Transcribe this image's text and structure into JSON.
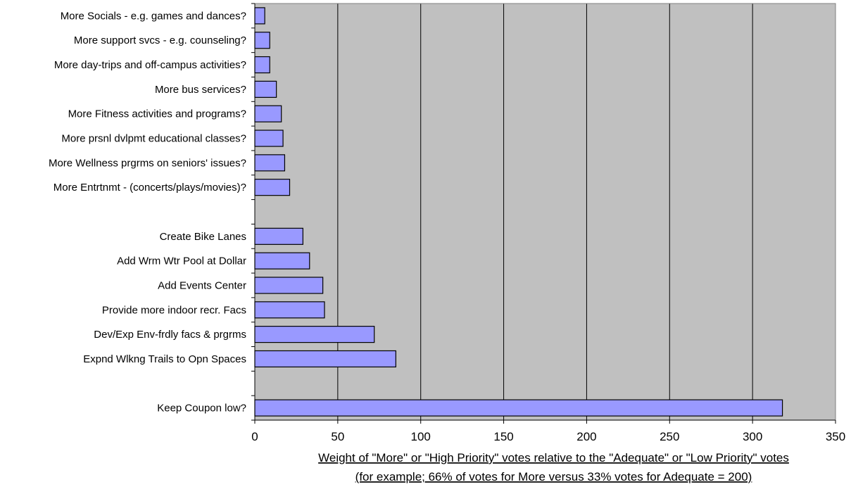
{
  "chart_data": {
    "type": "bar",
    "orientation": "horizontal",
    "categories": [
      "More Socials - e.g. games and dances?",
      "More support svcs - e.g. counseling?",
      "More day-trips and off-campus activities?",
      "More bus services?",
      "More Fitness activities and programs?",
      "More prsnl dvlpmt educational classes?",
      "More Wellness prgrms on seniors' issues?",
      "More Entrtnmt - (concerts/plays/movies)?",
      "",
      "Create Bike Lanes",
      "Add Wrm Wtr Pool at Dollar",
      "Add Events Center",
      "Provide more indoor recr. Facs",
      "Dev/Exp Env-frdly facs & prgrms",
      "Expnd Wlkng Trails to Opn Spaces",
      "",
      "Keep Coupon low?"
    ],
    "values": [
      6,
      9,
      9,
      13,
      16,
      17,
      18,
      21,
      null,
      29,
      33,
      41,
      42,
      72,
      85,
      null,
      318
    ],
    "xlim": [
      0,
      350
    ],
    "xticks": [
      0,
      50,
      100,
      150,
      200,
      250,
      300,
      350
    ],
    "xlabel_line1": "Weight of \"More\" or \"High Priority\" votes relative to the \"Adequate\" or \"Low Priority\" votes",
    "xlabel_line2": "(for example; 66% of votes for More versus 33% votes for Adequate = 200)",
    "grid": "vertical",
    "legend": "none",
    "colors": {
      "bar": "#9999ff",
      "bar_edge": "#000000",
      "plot_bg": "#c0c0c0",
      "gridline": "#000000"
    }
  }
}
